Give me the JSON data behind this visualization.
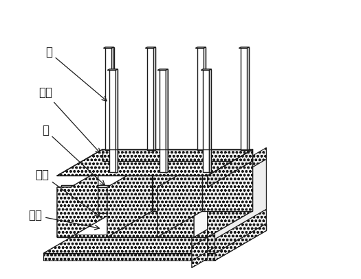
{
  "background_color": "#ffffff",
  "line_color": "#1a1a1a",
  "face_color_top": "#ffffff",
  "face_color_side": "#f0f0f0",
  "face_color_dark": "#e0e0e0",
  "hatch": "oooo",
  "font_size": 12,
  "fig_width": 5.25,
  "fig_height": 4.07,
  "labels": [
    "柱",
    "顶板",
    "墙",
    "底板",
    "垫层"
  ]
}
